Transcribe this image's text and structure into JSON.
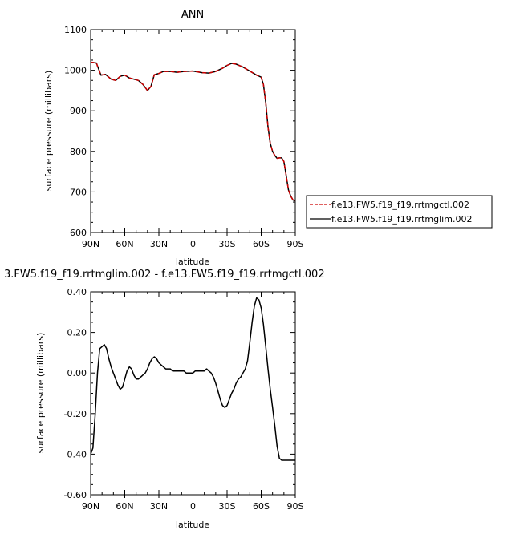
{
  "chart_data": [
    {
      "type": "line",
      "title": "ANN",
      "xlabel": "latitude",
      "ylabel": "surface pressure (millibars)",
      "x_tick_labels": [
        "90N",
        "60N",
        "30N",
        "0",
        "30S",
        "60S",
        "90S"
      ],
      "x_tick_values": [
        -90,
        -60,
        -30,
        0,
        30,
        60,
        90
      ],
      "xlim": [
        -90,
        90
      ],
      "ylim": [
        600,
        1100
      ],
      "y_tick_labels": [
        "600",
        "700",
        "800",
        "900",
        "1000",
        "1100"
      ],
      "y_tick_values": [
        600,
        700,
        800,
        900,
        1000,
        1100
      ],
      "grid": false,
      "legend_position": "right, outside plot",
      "legend": [
        {
          "label": "f.e13.FW5.f19_f19.rrtmgctl.002",
          "color": "#cc0000",
          "dash": "dashed"
        },
        {
          "label": "f.e13.FW5.f19_f19.rrtmglim.002",
          "color": "#000000",
          "dash": "solid"
        }
      ],
      "series": [
        {
          "name": "f.e13.FW5.f19_f19.rrtmgctl.002",
          "color": "#cc0000",
          "dash": "dashed",
          "x": [
            -90,
            -85,
            -81,
            -77,
            -72,
            -68,
            -64,
            -60,
            -56,
            -52,
            -48,
            -44,
            -40,
            -37,
            -34,
            -30,
            -26,
            -20,
            -14,
            -8,
            0,
            8,
            14,
            20,
            26,
            30,
            34,
            38,
            44,
            50,
            56,
            60,
            62,
            64,
            66,
            68,
            70,
            72,
            74,
            76,
            78,
            80,
            82,
            84,
            86,
            88,
            90
          ],
          "y": [
            1020,
            1018,
            988,
            990,
            978,
            975,
            985,
            988,
            981,
            978,
            975,
            965,
            950,
            960,
            989,
            992,
            997,
            997,
            995,
            997,
            998,
            994,
            993,
            997,
            1005,
            1012,
            1017,
            1015,
            1008,
            998,
            988,
            983,
            965,
            920,
            860,
            820,
            800,
            790,
            783,
            784,
            784,
            775,
            740,
            705,
            690,
            680,
            678
          ]
        },
        {
          "name": "f.e13.FW5.f19_f19.rrtmglim.002",
          "color": "#000000",
          "dash": "solid",
          "x": [
            -90,
            -85,
            -81,
            -77,
            -72,
            -68,
            -64,
            -60,
            -56,
            -52,
            -48,
            -44,
            -40,
            -37,
            -34,
            -30,
            -26,
            -20,
            -14,
            -8,
            0,
            8,
            14,
            20,
            26,
            30,
            34,
            38,
            44,
            50,
            56,
            60,
            62,
            64,
            66,
            68,
            70,
            72,
            74,
            76,
            78,
            80,
            82,
            84,
            86,
            88,
            90
          ],
          "y": [
            1020,
            1018,
            988,
            990,
            978,
            975,
            985,
            988,
            981,
            978,
            975,
            965,
            950,
            960,
            989,
            992,
            997,
            997,
            995,
            997,
            998,
            994,
            993,
            997,
            1005,
            1012,
            1017,
            1015,
            1008,
            998,
            988,
            983,
            965,
            920,
            860,
            820,
            800,
            790,
            783,
            784,
            784,
            775,
            740,
            705,
            690,
            680,
            678
          ]
        }
      ]
    },
    {
      "type": "line",
      "title": "3.FW5.f19_f19.rrtmglim.002 - f.e13.FW5.f19_f19.rrtmgctl.002",
      "xlabel": "latitude",
      "ylabel": "surface pressure (millibars)",
      "x_tick_labels": [
        "90N",
        "60N",
        "30N",
        "0",
        "30S",
        "60S",
        "90S"
      ],
      "x_tick_values": [
        -90,
        -60,
        -30,
        0,
        30,
        60,
        90
      ],
      "xlim": [
        -90,
        90
      ],
      "ylim": [
        -0.6,
        0.4
      ],
      "y_tick_labels": [
        "-0.60",
        "-0.40",
        "-0.20",
        "0.00",
        "0.20",
        "0.40"
      ],
      "y_tick_values": [
        -0.6,
        -0.4,
        -0.2,
        0,
        0.2,
        0.4
      ],
      "grid": false,
      "series": [
        {
          "name": "",
          "color": "#000000",
          "dash": "solid",
          "x": [
            -90,
            -88,
            -86,
            -84,
            -82,
            -80,
            -78,
            -76,
            -74,
            -72,
            -70,
            -68,
            -66,
            -64,
            -62,
            -60,
            -58,
            -56,
            -54,
            -52,
            -50,
            -48,
            -46,
            -44,
            -42,
            -40,
            -38,
            -36,
            -34,
            -32,
            -30,
            -28,
            -26,
            -24,
            -22,
            -20,
            -18,
            -16,
            -14,
            -12,
            -10,
            -8,
            -6,
            -4,
            -2,
            0,
            2,
            4,
            6,
            8,
            10,
            12,
            14,
            16,
            18,
            20,
            22,
            24,
            26,
            28,
            30,
            32,
            34,
            36,
            38,
            40,
            42,
            44,
            46,
            48,
            50,
            52,
            54,
            56,
            58,
            60,
            62,
            64,
            66,
            68,
            70,
            72,
            74,
            76,
            78,
            80,
            82,
            84,
            86,
            88,
            90
          ],
          "y": [
            -0.4,
            -0.37,
            -0.2,
            0.0,
            0.12,
            0.13,
            0.14,
            0.12,
            0.07,
            0.03,
            0.0,
            -0.03,
            -0.06,
            -0.08,
            -0.07,
            -0.03,
            0.01,
            0.03,
            0.02,
            -0.01,
            -0.03,
            -0.03,
            -0.02,
            -0.01,
            0.0,
            0.02,
            0.05,
            0.07,
            0.08,
            0.07,
            0.05,
            0.04,
            0.03,
            0.02,
            0.02,
            0.02,
            0.01,
            0.01,
            0.01,
            0.01,
            0.01,
            0.01,
            0.0,
            0.0,
            0.0,
            0.0,
            0.01,
            0.01,
            0.01,
            0.01,
            0.01,
            0.02,
            0.01,
            0.0,
            -0.02,
            -0.05,
            -0.09,
            -0.13,
            -0.16,
            -0.17,
            -0.16,
            -0.13,
            -0.1,
            -0.08,
            -0.05,
            -0.03,
            -0.02,
            0.0,
            0.02,
            0.06,
            0.15,
            0.25,
            0.33,
            0.37,
            0.36,
            0.32,
            0.24,
            0.13,
            0.02,
            -0.08,
            -0.17,
            -0.26,
            -0.36,
            -0.42,
            -0.43,
            -0.43,
            -0.43,
            -0.43,
            -0.43,
            -0.43,
            -0.43
          ]
        }
      ]
    }
  ]
}
